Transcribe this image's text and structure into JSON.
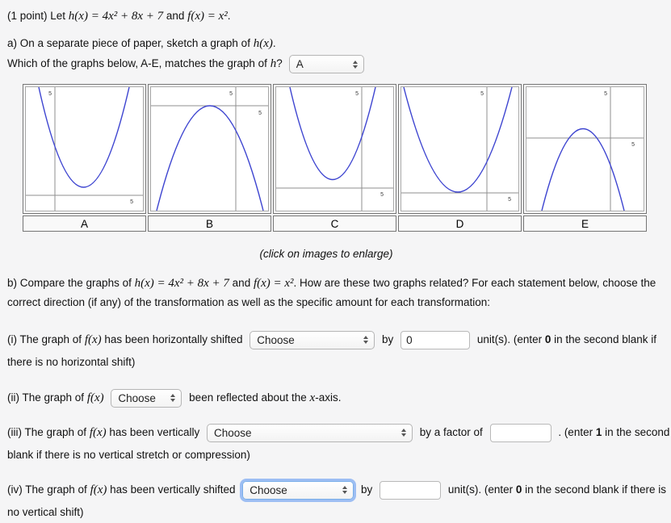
{
  "texts": {
    "title": [
      {
        "s": "plain",
        "t": "(1 point) Let "
      },
      {
        "s": "math",
        "t": "h(x) = 4x² + 8x + 7"
      },
      {
        "s": "plain",
        "t": " and "
      },
      {
        "s": "math",
        "t": "f(x) = x²"
      },
      {
        "s": "plain",
        "t": "."
      }
    ],
    "part_a_line1": [
      {
        "s": "plain",
        "t": "a) On a separate piece of paper, sketch a graph of "
      },
      {
        "s": "math",
        "t": "h(x)"
      },
      {
        "s": "plain",
        "t": "."
      }
    ],
    "part_a_line2": [
      {
        "s": "plain",
        "t": "Which of the graphs below, A-E, matches the graph of "
      },
      {
        "s": "math",
        "t": "h"
      },
      {
        "s": "plain",
        "t": "?"
      }
    ],
    "caption": "(click on images to enlarge)",
    "part_b": [
      {
        "s": "plain",
        "t": "b) Compare the graphs of "
      },
      {
        "s": "math",
        "t": "h(x) = 4x² + 8x + 7"
      },
      {
        "s": "plain",
        "t": " and "
      },
      {
        "s": "math",
        "t": "f(x) = x²"
      },
      {
        "s": "plain",
        "t": ". How are these two graphs related? For each statement below, choose the correct direction (if any) of the transformation as well as the specific amount for each transformation:"
      }
    ]
  },
  "part_a_select": {
    "value": "A"
  },
  "graphs": [
    {
      "label": "A",
      "tick_v": "5",
      "tick_h": "5"
    },
    {
      "label": "B",
      "tick_v": "5",
      "tick_h": "5"
    },
    {
      "label": "C",
      "tick_v": "5",
      "tick_h": "5"
    },
    {
      "label": "D",
      "tick_v": "5",
      "tick_h": "5"
    },
    {
      "label": "E",
      "tick_v": "5",
      "tick_h": "5"
    }
  ],
  "statements": [
    {
      "pre": [
        {
          "s": "plain",
          "t": "(i) The graph of "
        },
        {
          "s": "math",
          "t": "f(x)"
        },
        {
          "s": "plain",
          "t": " has been horizontally shifted"
        }
      ],
      "select_value": "Choose",
      "mid": "by",
      "input_value": "0",
      "post": [
        {
          "s": "plain",
          "t": "unit(s). (enter "
        },
        {
          "s": "bold",
          "t": "0"
        },
        {
          "s": "plain",
          "t": " in the second blank if there is no horizontal shift)"
        }
      ]
    },
    {
      "pre": [
        {
          "s": "plain",
          "t": "(ii) The graph of "
        },
        {
          "s": "math",
          "t": "f(x)"
        }
      ],
      "select_value": "Choose",
      "post": [
        {
          "s": "plain",
          "t": "been reflected about the "
        },
        {
          "s": "math",
          "t": "x"
        },
        {
          "s": "plain",
          "t": "-axis."
        }
      ]
    },
    {
      "pre": [
        {
          "s": "plain",
          "t": "(iii) The graph of "
        },
        {
          "s": "math",
          "t": "f(x)"
        },
        {
          "s": "plain",
          "t": " has been vertically"
        }
      ],
      "select_value": "Choose",
      "mid": "by a factor of",
      "input_value": "",
      "post": [
        {
          "s": "plain",
          "t": ". (enter "
        },
        {
          "s": "bold",
          "t": "1"
        },
        {
          "s": "plain",
          "t": " in the second blank if there is no vertical stretch or compression)"
        }
      ]
    },
    {
      "pre": [
        {
          "s": "plain",
          "t": "(iv) The graph of "
        },
        {
          "s": "math",
          "t": "f(x)"
        },
        {
          "s": "plain",
          "t": " has been vertically shifted"
        }
      ],
      "select_value": "Choose",
      "mid": "by",
      "input_value": "",
      "post": [
        {
          "s": "plain",
          "t": "unit(s). (enter "
        },
        {
          "s": "bold",
          "t": "0"
        },
        {
          "s": "plain",
          "t": " in the second blank if there is no vertical shift)"
        }
      ]
    }
  ]
}
